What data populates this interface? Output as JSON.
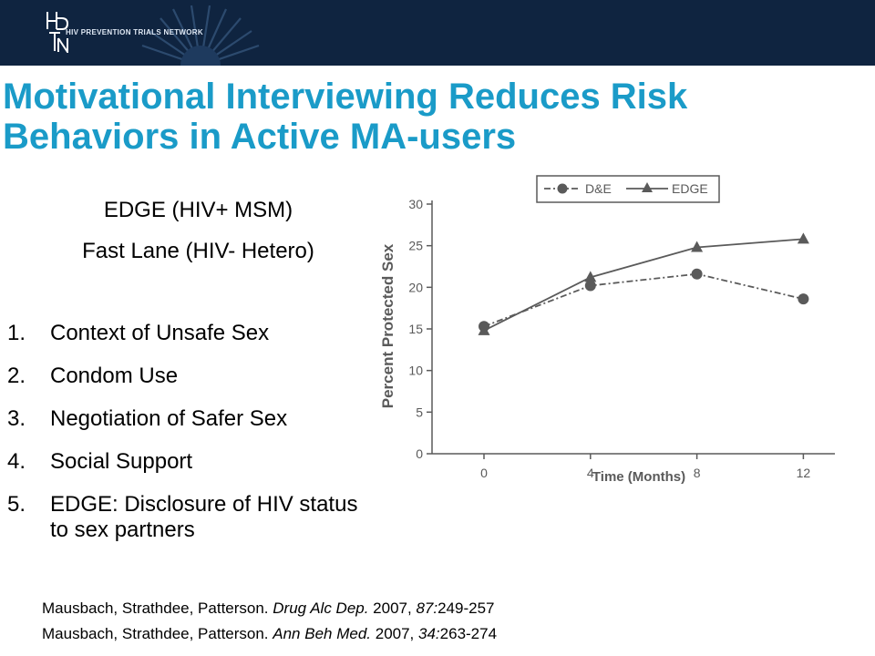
{
  "header": {
    "logo_letters": [
      "H",
      "P",
      "T",
      "N"
    ],
    "logo_text": "HIV PREVENTION TRIALS NETWORK"
  },
  "title": "Motivational Interviewing Reduces Risk\nBehaviors in Active MA-users",
  "subtitle_lines": [
    "EDGE  (HIV+ MSM)",
    "Fast Lane (HIV- Hetero)"
  ],
  "list": [
    {
      "num": "1.",
      "text": "Context of Unsafe Sex"
    },
    {
      "num": "2.",
      "text": "Condom Use"
    },
    {
      "num": "3.",
      "text": "Negotiation of Safer Sex"
    },
    {
      "num": "4.",
      "text": "Social Support"
    },
    {
      "num": "5.",
      "text": "EDGE: Disclosure of HIV status to sex partners"
    }
  ],
  "chart_data": {
    "type": "line",
    "x": [
      0,
      4,
      8,
      12
    ],
    "xlabel": "Time (Months)",
    "ylabel": "Percent Protected Sex",
    "xticks": [
      "0",
      "4",
      "8",
      "12"
    ],
    "yticks": [
      "0",
      "5",
      "10",
      "15",
      "20",
      "25",
      "30"
    ],
    "ylim": [
      0,
      30
    ],
    "legend": "top",
    "series": [
      {
        "name": "D&E",
        "values": [
          15.3,
          20.2,
          21.6,
          18.6
        ],
        "marker": "circle",
        "line": "dash-dot"
      },
      {
        "name": "EDGE",
        "values": [
          14.8,
          21.2,
          24.8,
          25.8
        ],
        "marker": "triangle",
        "line": "solid"
      }
    ],
    "color": "#5a5a5a"
  },
  "references": [
    {
      "authors": "Mausbach, Strathdee, Patterson. ",
      "journal": "Drug Alc Dep.",
      "year": " 2007, ",
      "volume": "87:",
      "pages": "249-257"
    },
    {
      "authors": "Mausbach, Strathdee, Patterson. ",
      "journal": "Ann Beh Med.",
      "year": " 2007, ",
      "volume": "34:",
      "pages": "263-274"
    }
  ]
}
